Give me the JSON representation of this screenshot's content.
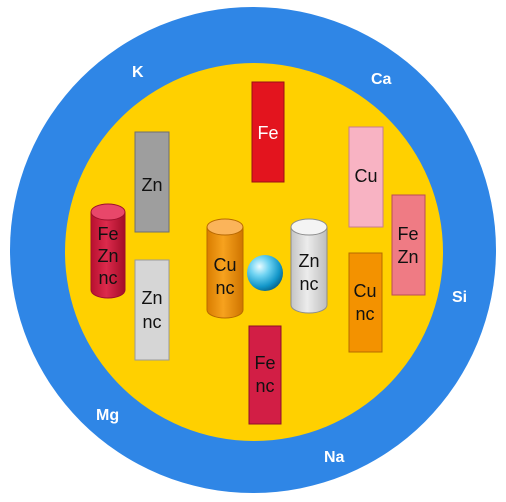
{
  "colors": {
    "outer_ring": "#2f86e6",
    "inner_disc": "#ffd000",
    "red": "#e3141e",
    "gray": "#9e9e9e",
    "light_gray": "#d6d6d6",
    "orange": "#f39200",
    "pink": "#f8b3c3",
    "salmon": "#ef7b84",
    "crimson": "#d21e45",
    "core_sphere": "#1fa8d8"
  },
  "ions": {
    "k": "K",
    "ca": "Ca",
    "si": "Si",
    "na": "Na",
    "mg": "Mg"
  },
  "blocks": {
    "fe_top": {
      "line1": "Fe"
    },
    "zn_left": {
      "line1": "Zn"
    },
    "zn_nc_left": {
      "line1": "Zn",
      "line2": "nc"
    },
    "fe_nc_bottom": {
      "line1": "Fe",
      "line2": "nc"
    },
    "cu_right": {
      "line1": "Cu"
    },
    "fe_zn_right": {
      "line1": "Fe",
      "line2": "Zn"
    },
    "cu_nc_right": {
      "line1": "Cu",
      "line2": "nc"
    }
  },
  "cylinders": {
    "fe_zn_nc": {
      "line1": "Fe",
      "line2": "Zn",
      "line3": "nc"
    },
    "cu_nc": {
      "line1": "Cu",
      "line2": "nc"
    },
    "zn_nc": {
      "line1": "Zn",
      "line2": "nc"
    }
  },
  "core": {
    "icon": "sphere-icon"
  }
}
